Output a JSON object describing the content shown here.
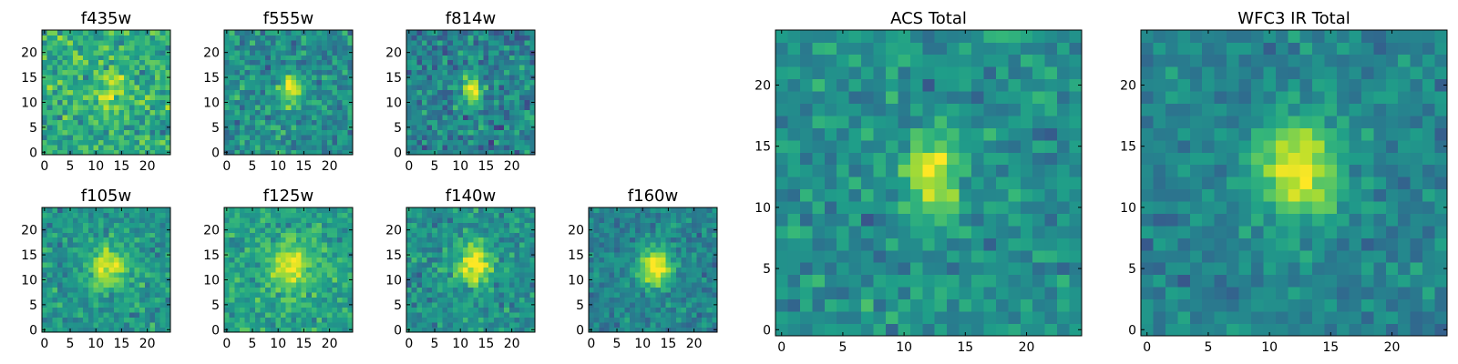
{
  "chart_data": [
    {
      "type": "heatmap",
      "title": "f435w",
      "xlim": [
        -0.5,
        24.5
      ],
      "ylim": [
        -0.5,
        24.5
      ],
      "xticks": [
        0,
        5,
        10,
        15,
        20
      ],
      "yticks": [
        0,
        5,
        10,
        15,
        20
      ],
      "grid": false,
      "colormap": "viridis",
      "source": {
        "cx": 12.5,
        "cy": 11.5,
        "sx": 2.2,
        "sy": 3.0,
        "peak": 0.22,
        "base": 0.62,
        "noise": 0.32,
        "seed": 11
      }
    },
    {
      "type": "heatmap",
      "title": "f555w",
      "xlim": [
        -0.5,
        24.5
      ],
      "ylim": [
        -0.5,
        24.5
      ],
      "xticks": [
        0,
        5,
        10,
        15,
        20
      ],
      "yticks": [
        0,
        5,
        10,
        15,
        20
      ],
      "grid": false,
      "colormap": "viridis",
      "source": {
        "cx": 12.5,
        "cy": 12.5,
        "sx": 1.4,
        "sy": 2.0,
        "peak": 0.42,
        "base": 0.5,
        "noise": 0.3,
        "seed": 23
      }
    },
    {
      "type": "heatmap",
      "title": "f814w",
      "xlim": [
        -0.5,
        24.5
      ],
      "ylim": [
        -0.5,
        24.5
      ],
      "xticks": [
        0,
        5,
        10,
        15,
        20
      ],
      "yticks": [
        0,
        5,
        10,
        15,
        20
      ],
      "grid": false,
      "colormap": "viridis",
      "source": {
        "cx": 12.3,
        "cy": 12.5,
        "sx": 1.2,
        "sy": 2.0,
        "peak": 0.5,
        "base": 0.45,
        "noise": 0.32,
        "seed": 37
      }
    },
    {
      "type": "heatmap",
      "title": "f105w",
      "xlim": [
        -0.5,
        24.5
      ],
      "ylim": [
        -0.5,
        24.5
      ],
      "xticks": [
        0,
        5,
        10,
        15,
        20
      ],
      "yticks": [
        0,
        5,
        10,
        15,
        20
      ],
      "grid": false,
      "colormap": "viridis",
      "source": {
        "cx": 12.5,
        "cy": 12.5,
        "sx": 2.6,
        "sy": 3.0,
        "peak": 0.38,
        "base": 0.52,
        "noise": 0.26,
        "seed": 41
      }
    },
    {
      "type": "heatmap",
      "title": "f125w",
      "xlim": [
        -0.5,
        24.5
      ],
      "ylim": [
        -0.5,
        24.5
      ],
      "xticks": [
        0,
        5,
        10,
        15,
        20
      ],
      "yticks": [
        0,
        5,
        10,
        15,
        20
      ],
      "grid": false,
      "colormap": "viridis",
      "source": {
        "cx": 12.5,
        "cy": 12.5,
        "sx": 2.8,
        "sy": 3.2,
        "peak": 0.32,
        "base": 0.58,
        "noise": 0.24,
        "seed": 53
      }
    },
    {
      "type": "heatmap",
      "title": "f140w",
      "xlim": [
        -0.5,
        24.5
      ],
      "ylim": [
        -0.5,
        24.5
      ],
      "xticks": [
        0,
        5,
        10,
        15,
        20
      ],
      "yticks": [
        0,
        5,
        10,
        15,
        20
      ],
      "grid": false,
      "colormap": "viridis",
      "source": {
        "cx": 12.5,
        "cy": 13.0,
        "sx": 2.5,
        "sy": 3.0,
        "peak": 0.42,
        "base": 0.5,
        "noise": 0.26,
        "seed": 67
      }
    },
    {
      "type": "heatmap",
      "title": "f160w",
      "xlim": [
        -0.5,
        24.5
      ],
      "ylim": [
        -0.5,
        24.5
      ],
      "xticks": [
        0,
        5,
        10,
        15,
        20
      ],
      "yticks": [
        0,
        5,
        10,
        15,
        20
      ],
      "grid": false,
      "colormap": "viridis",
      "source": {
        "cx": 12.5,
        "cy": 12.5,
        "sx": 2.3,
        "sy": 2.6,
        "peak": 0.5,
        "base": 0.45,
        "noise": 0.22,
        "seed": 79
      }
    },
    {
      "type": "heatmap",
      "title": "ACS Total",
      "xlim": [
        -0.5,
        24.5
      ],
      "ylim": [
        -0.5,
        24.5
      ],
      "xticks": [
        0,
        5,
        10,
        15,
        20
      ],
      "yticks": [
        0,
        5,
        10,
        15,
        20
      ],
      "grid": false,
      "colormap": "viridis",
      "source": {
        "cx": 12.3,
        "cy": 12.5,
        "sx": 1.4,
        "sy": 2.4,
        "peak": 0.42,
        "base": 0.5,
        "noise": 0.24,
        "seed": 97
      }
    },
    {
      "type": "heatmap",
      "title": "WFC3 IR Total",
      "xlim": [
        -0.5,
        24.5
      ],
      "ylim": [
        -0.5,
        24.5
      ],
      "xticks": [
        0,
        5,
        10,
        15,
        20
      ],
      "yticks": [
        0,
        5,
        10,
        15,
        20
      ],
      "grid": false,
      "colormap": "viridis",
      "source": {
        "cx": 12.5,
        "cy": 13.0,
        "sx": 2.4,
        "sy": 2.8,
        "peak": 0.45,
        "base": 0.45,
        "noise": 0.2,
        "seed": 113
      }
    }
  ],
  "colors": {
    "viridis": [
      "#440154",
      "#482878",
      "#3e4989",
      "#31688e",
      "#26828e",
      "#1f9e89",
      "#35b779",
      "#6ece58",
      "#b5de2b",
      "#fde725"
    ],
    "axis": "#000000",
    "background": "#ffffff"
  }
}
